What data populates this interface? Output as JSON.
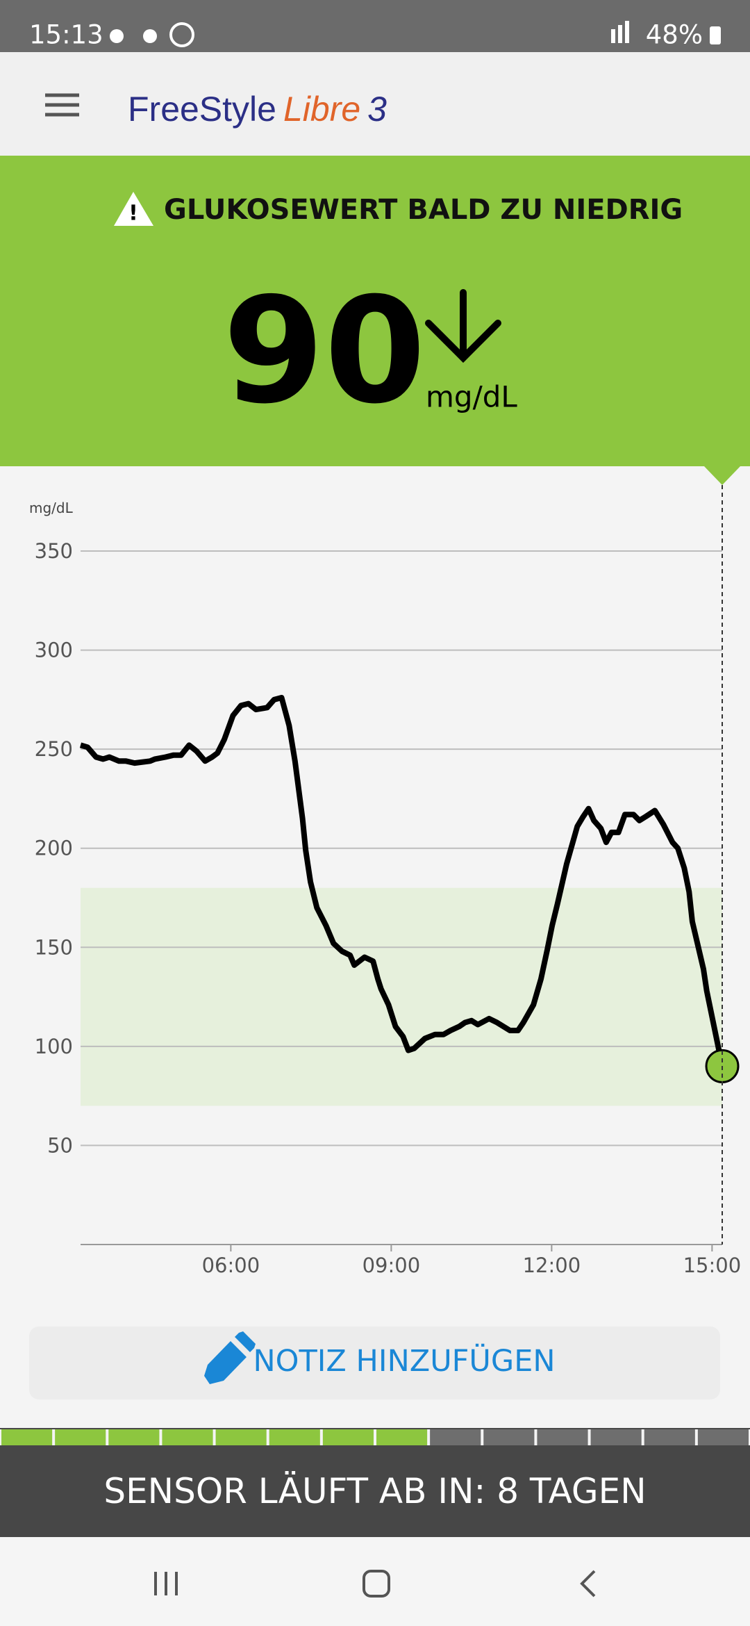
{
  "status_bar": {
    "time": "15:13",
    "battery": "48%"
  },
  "app_bar": {
    "logo": {
      "brand": "FreeStyle",
      "product": "Libre",
      "version": "3"
    }
  },
  "alert": {
    "title": "GLUKOSEWERT BALD ZU NIEDRIG",
    "value": "90",
    "unit": "mg/dL"
  },
  "chart_data": {
    "type": "line",
    "y_axis_label": "mg/dL",
    "x": [
      3.19,
      3.32,
      3.48,
      3.61,
      3.73,
      3.91,
      4.04,
      4.2,
      4.49,
      4.58,
      4.78,
      4.93,
      5.07,
      5.22,
      5.36,
      5.52,
      5.65,
      5.75,
      5.88,
      6.04,
      6.19,
      6.33,
      6.47,
      6.68,
      6.81,
      6.95,
      7.09,
      7.2,
      7.34,
      7.4,
      7.49,
      7.61,
      7.78,
      7.92,
      8.08,
      8.23,
      8.31,
      8.5,
      8.66,
      8.75,
      8.81,
      8.95,
      9.08,
      9.22,
      9.32,
      9.43,
      9.63,
      9.82,
      9.98,
      10.11,
      10.27,
      10.38,
      10.5,
      10.62,
      10.83,
      10.98,
      11.22,
      11.37,
      11.47,
      11.66,
      11.8,
      11.92,
      12.01,
      12.11,
      12.28,
      12.48,
      12.59,
      12.69,
      12.79,
      12.92,
      13.02,
      13.12,
      13.25,
      13.37,
      13.53,
      13.64,
      13.76,
      13.93,
      14.09,
      14.26,
      14.36,
      14.48,
      14.57,
      14.63,
      14.84,
      14.9,
      15.19
    ],
    "series": [
      {
        "color": "#000000",
        "values": [
          252,
          251,
          246,
          245,
          246,
          244,
          244,
          243,
          244,
          245,
          246,
          247,
          247,
          252,
          249,
          244,
          246,
          248,
          255,
          267,
          272,
          273,
          270,
          271,
          275,
          276,
          262,
          244,
          215,
          199,
          183,
          170,
          161,
          152,
          148,
          146,
          141,
          145,
          143,
          134,
          129,
          121,
          110,
          105,
          98,
          99,
          104,
          106,
          106,
          108,
          110,
          112,
          113,
          111,
          114,
          112,
          108,
          108,
          112,
          121,
          134,
          149,
          161,
          172,
          192,
          211,
          216,
          220,
          214,
          210,
          203,
          208,
          208,
          217,
          217,
          214,
          216,
          219,
          212,
          203,
          200,
          190,
          178,
          163,
          139,
          128,
          90
        ]
      }
    ],
    "marker_color": "#8dc63f",
    "target_range": [
      70,
      180
    ],
    "target_color": "#e6f0dc",
    "xlim": [
      3.19,
      15.19
    ],
    "xticks": [
      {
        "value": 6,
        "label": "06:00"
      },
      {
        "value": 9,
        "label": "09:00"
      },
      {
        "value": 12,
        "label": "12:00"
      },
      {
        "value": 15,
        "label": "15:00"
      }
    ],
    "ylim": [
      0,
      350
    ],
    "yticks": [
      50,
      100,
      150,
      200,
      250,
      300,
      350
    ],
    "grid": true
  },
  "note_button": {
    "label": "NOTIZ HINZUFÜGEN"
  },
  "sensor": {
    "message": "SENSOR LÄUFT AB IN: 8 TAGEN",
    "progress": {
      "filled": 8,
      "total": 14
    }
  }
}
